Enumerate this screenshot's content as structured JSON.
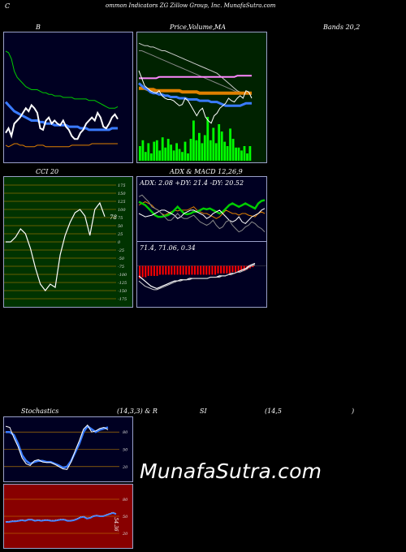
{
  "header": {
    "left": "C",
    "title": "ommon  Indicators ZG Zillow  Group,  Inc. MunafaSutra.com"
  },
  "labels": {
    "b": "B",
    "price_a": "Price,",
    "price_b": "Volume,",
    "price_c": "MA",
    "bands": "Bands 20,2",
    "cci": "CCI 20",
    "adx_macd": "ADX  & MACD 12,26,9",
    "adx_values": "ADX: 2.08  +DY: 21.4  -DY: 20.52",
    "macd_values": "71.4,  71.06,  0.34",
    "stoch": "Stochastics",
    "stoch_params": "(14,3,3) & R",
    "si": "SI",
    "rsi_params": "(14,5",
    "rsi_close": ")",
    "cci_last": "78",
    "rsi_last": "54.36"
  },
  "watermark": "MunafaSutra.com",
  "colors": {
    "bg": "#000000",
    "bands_bg": "#000022",
    "price_bg": "#002200",
    "cci_bg": "#003300",
    "rsi_bg": "#880000",
    "green": "#00cc00",
    "blue": "#3a7bff",
    "orange": "#e08000",
    "volume": "#00ff00",
    "macd_hist": "#ff0000"
  },
  "chart_data": [
    {
      "type": "line",
      "name": "bollinger-bands",
      "x": [
        1,
        2,
        3,
        4,
        5,
        6,
        7,
        8,
        9,
        10,
        11,
        12,
        13,
        14,
        15,
        16,
        17,
        18,
        19,
        20,
        21,
        22,
        23,
        24,
        25,
        26,
        27,
        28,
        29,
        30,
        31,
        32,
        33,
        34,
        35,
        36,
        37,
        38,
        39,
        40
      ],
      "series": [
        {
          "values": [
            95,
            94,
            90,
            82,
            78,
            76,
            74,
            72,
            71,
            70,
            70,
            70,
            69,
            68,
            68,
            67,
            67,
            66,
            66,
            66,
            65,
            65,
            65,
            65,
            64,
            64,
            64,
            64,
            64,
            63,
            63,
            63,
            62,
            61,
            60,
            59,
            58,
            58,
            58,
            59
          ]
        },
        {
          "values": [
            62,
            60,
            58,
            56,
            55,
            54,
            53,
            52,
            51,
            50,
            50,
            50,
            49,
            49,
            48,
            48,
            48,
            47,
            47,
            47,
            47,
            47,
            46,
            46,
            46,
            46,
            45,
            45,
            45,
            44,
            44,
            44,
            44,
            44,
            44,
            44,
            44,
            45,
            45,
            45
          ]
        },
        {
          "values": [
            34,
            33,
            34,
            35,
            35,
            34,
            34,
            33,
            33,
            33,
            33,
            34,
            34,
            34,
            33,
            33,
            33,
            33,
            33,
            33,
            33,
            33,
            33,
            34,
            34,
            34,
            34,
            34,
            34,
            34,
            35,
            35,
            35,
            35,
            35,
            35,
            35,
            35,
            35,
            35
          ]
        },
        {
          "values": [
            42,
            45,
            40,
            48,
            50,
            52,
            55,
            58,
            56,
            60,
            58,
            55,
            45,
            44,
            50,
            52,
            48,
            50,
            48,
            47,
            50,
            46,
            44,
            40,
            38,
            38,
            42,
            44,
            48,
            50,
            52,
            50,
            55,
            52,
            46,
            45,
            48,
            52,
            54,
            51
          ]
        }
      ],
      "ylim": [
        25,
        105
      ]
    },
    {
      "type": "bar+line",
      "name": "price-volume-ma",
      "volume": [
        20,
        28,
        12,
        24,
        10,
        26,
        28,
        14,
        32,
        18,
        30,
        22,
        14,
        24,
        16,
        12,
        26,
        10,
        30,
        55,
        28,
        38,
        24,
        35,
        60,
        28,
        45,
        24,
        50,
        40,
        26,
        20,
        44,
        30,
        18,
        18,
        14,
        20,
        10,
        20
      ],
      "series": [
        {
          "values": [
            94,
            93,
            92,
            92,
            91,
            91,
            90,
            89,
            88,
            88,
            87,
            86,
            85,
            84,
            83,
            82,
            81,
            80,
            79,
            78,
            77,
            76,
            75,
            74,
            73,
            72,
            71,
            70,
            68,
            66,
            64,
            62,
            60,
            58,
            56,
            55,
            54,
            54,
            54,
            53
          ]
        },
        {
          "values": [
            88,
            88,
            87,
            86,
            85,
            84,
            83,
            82,
            81,
            80,
            79,
            78,
            77,
            76,
            75,
            74,
            73,
            72,
            71,
            70,
            69,
            68,
            67,
            66,
            65,
            64,
            63,
            62,
            61,
            60,
            59,
            58,
            57,
            56,
            55,
            54,
            54,
            54,
            54,
            53
          ]
        },
        {
          "values": [
            66,
            66,
            66,
            66,
            66,
            66,
            66,
            67,
            67,
            67,
            67,
            67,
            67,
            67,
            67,
            67,
            67,
            67,
            67,
            67,
            67,
            67,
            67,
            67,
            67,
            67,
            67,
            67,
            67,
            67,
            67,
            67,
            67,
            67,
            68,
            68,
            68,
            68,
            68,
            68
          ]
        },
        {
          "values": [
            58,
            58,
            58,
            57,
            57,
            57,
            56,
            56,
            56,
            56,
            56,
            56,
            56,
            56,
            56,
            55,
            55,
            55,
            55,
            55,
            55,
            54,
            54,
            54,
            54,
            54,
            54,
            54,
            54,
            54,
            54,
            54,
            54,
            54,
            54,
            54,
            54,
            54,
            54,
            54
          ]
        },
        {
          "values": [
            62,
            60,
            58,
            57,
            55,
            54,
            54,
            53,
            53,
            52,
            52,
            51,
            51,
            51,
            50,
            50,
            50,
            49,
            49,
            49,
            49,
            48,
            48,
            48,
            48,
            47,
            47,
            47,
            46,
            45,
            44,
            44,
            44,
            44,
            44,
            44,
            45,
            46,
            46,
            46
          ]
        },
        {
          "values": [
            72,
            66,
            60,
            58,
            56,
            55,
            54,
            56,
            52,
            50,
            49,
            49,
            48,
            46,
            44,
            45,
            50,
            48,
            44,
            40,
            36,
            40,
            42,
            35,
            32,
            30,
            36,
            38,
            42,
            44,
            46,
            50,
            48,
            47,
            50,
            52,
            50,
            56,
            55,
            50
          ]
        }
      ],
      "ylim": [
        0,
        100
      ]
    },
    {
      "type": "line",
      "name": "cci",
      "yticks": [
        175,
        150,
        125,
        100,
        75,
        50,
        25,
        0,
        -25,
        -50,
        -75,
        -100,
        -125,
        -150,
        -175
      ],
      "series": [
        {
          "values": [
            0,
            0,
            15,
            40,
            25,
            -20,
            -80,
            -130,
            -150,
            -130,
            -140,
            -40,
            20,
            60,
            90,
            100,
            80,
            20,
            100,
            120,
            78
          ]
        }
      ],
      "ylim": [
        -190,
        190
      ]
    },
    {
      "type": "line",
      "name": "adx",
      "x": [
        1,
        2,
        3,
        4,
        5,
        6,
        7,
        8,
        9,
        10,
        11,
        12,
        13,
        14,
        15,
        16,
        17,
        18,
        19,
        20,
        21,
        22,
        23,
        24,
        25,
        26,
        27,
        28,
        29,
        30,
        31,
        32,
        33,
        34,
        35,
        36,
        37,
        38,
        39,
        40
      ],
      "series": [
        {
          "values": [
            40,
            42,
            44,
            42,
            40,
            36,
            34,
            30,
            28,
            30,
            32,
            34,
            33,
            34,
            34,
            34,
            36,
            38,
            34,
            32,
            30,
            30,
            28,
            26,
            24,
            26,
            30,
            34,
            32,
            30,
            30,
            28,
            30,
            30,
            28,
            27,
            26,
            30,
            32,
            30
          ]
        },
        {
          "values": [
            44,
            42,
            40,
            36,
            32,
            28,
            26,
            26,
            27,
            28,
            30,
            34,
            38,
            34,
            30,
            29,
            30,
            32,
            32,
            34,
            36,
            35,
            36,
            34,
            32,
            30,
            32,
            36,
            40,
            42,
            40,
            38,
            40,
            42,
            40,
            38,
            36,
            42,
            45,
            46
          ]
        },
        {
          "values": [
            30,
            28,
            26,
            27,
            28,
            30,
            32,
            34,
            34,
            32,
            30,
            28,
            24,
            26,
            30,
            32,
            34,
            34,
            32,
            30,
            28,
            24,
            26,
            30,
            32,
            34,
            30,
            26,
            22,
            20,
            22,
            26,
            20,
            18,
            22,
            26,
            28,
            30,
            34,
            36
          ]
        },
        {
          "values": [
            50,
            52,
            48,
            44,
            38,
            36,
            34,
            30,
            26,
            22,
            22,
            26,
            30,
            26,
            24,
            24,
            26,
            28,
            24,
            20,
            18,
            16,
            18,
            22,
            16,
            12,
            14,
            20,
            22,
            16,
            12,
            8,
            10,
            14,
            16,
            20,
            18,
            14,
            12,
            8
          ]
        }
      ],
      "ylim": [
        0,
        60
      ]
    },
    {
      "type": "bar+line",
      "name": "macd",
      "histogram": [
        10,
        9,
        9,
        8,
        8,
        8,
        8,
        7,
        7,
        7,
        7,
        7,
        7,
        7,
        7,
        7,
        7,
        7,
        7,
        7,
        7,
        7,
        7,
        7,
        7,
        7,
        7,
        6,
        6,
        6,
        6,
        6,
        5,
        5,
        5,
        4,
        4,
        3,
        2,
        1
      ],
      "series": [
        {
          "values": [
            -8,
            -10,
            -12,
            -14,
            -16,
            -17,
            -18,
            -17,
            -16,
            -15,
            -14,
            -13,
            -12,
            -12,
            -11,
            -11,
            -11,
            -10,
            -10,
            -10,
            -10,
            -10,
            -10,
            -10,
            -9,
            -9,
            -9,
            -8,
            -8,
            -8,
            -7,
            -6,
            -6,
            -5,
            -4,
            -3,
            -2,
            0,
            1,
            2
          ]
        },
        {
          "values": [
            -12,
            -14,
            -16,
            -17,
            -18,
            -19,
            -19,
            -18,
            -17,
            -16,
            -15,
            -14,
            -13,
            -12,
            -12,
            -11,
            -11,
            -11,
            -10,
            -10,
            -10,
            -10,
            -10,
            -10,
            -9,
            -9,
            -9,
            -9,
            -8,
            -8,
            -7,
            -7,
            -6,
            -5,
            -5,
            -4,
            -3,
            -1,
            0,
            1
          ]
        }
      ],
      "ylim": [
        -30,
        10
      ]
    },
    {
      "type": "line",
      "name": "stochastics",
      "yticks": [
        80,
        50,
        20
      ],
      "series": [
        {
          "values": [
            80,
            80,
            75,
            60,
            40,
            30,
            25,
            28,
            30,
            30,
            28,
            28,
            25,
            22,
            18,
            20,
            30,
            45,
            60,
            80,
            90,
            85,
            80,
            84,
            86,
            88
          ]
        },
        {
          "values": [
            90,
            88,
            70,
            55,
            35,
            25,
            22,
            30,
            32,
            28,
            27,
            27,
            24,
            20,
            16,
            15,
            28,
            48,
            65,
            85,
            92,
            80,
            82,
            86,
            88,
            84
          ]
        }
      ],
      "ylim": [
        0,
        100
      ]
    },
    {
      "type": "line",
      "name": "rsi",
      "yticks": [
        80,
        50,
        20
      ],
      "series": [
        {
          "values": [
            40,
            40,
            41,
            41,
            42,
            43,
            42,
            44,
            44,
            42,
            43,
            42,
            43,
            43,
            42,
            42,
            43,
            44,
            44,
            42,
            42,
            43,
            45,
            48,
            49,
            46,
            47,
            50,
            51,
            50,
            50,
            52,
            54,
            56,
            54
          ]
        }
      ],
      "ylim": [
        0,
        100
      ]
    }
  ]
}
